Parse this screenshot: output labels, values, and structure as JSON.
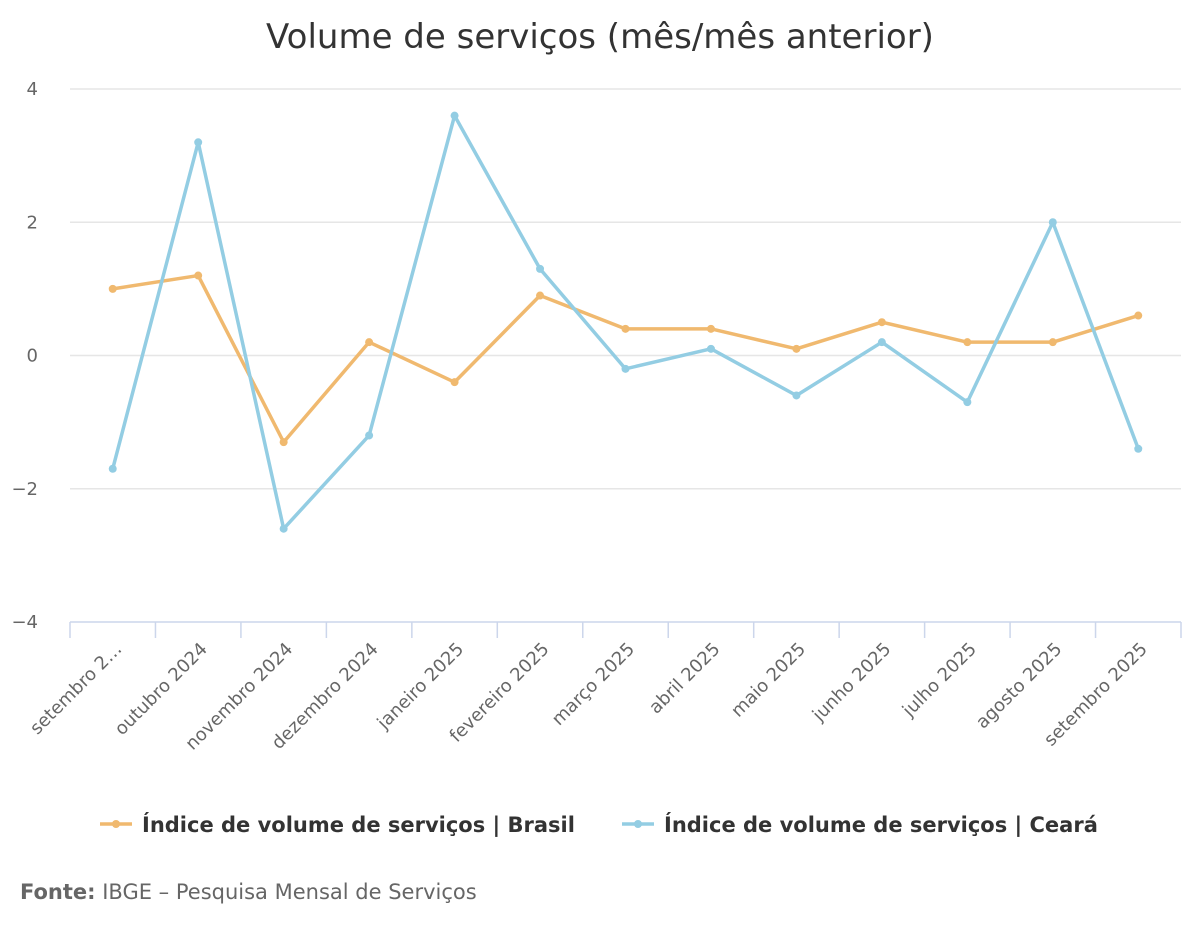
{
  "chart_data": {
    "type": "line",
    "title": "Volume de serviços (mês/mês anterior)",
    "xlabel": "",
    "ylabel": "",
    "ylim": [
      -4,
      4
    ],
    "yticks": [
      4,
      2,
      0,
      -2,
      -4
    ],
    "ytick_labels": [
      "4",
      "2",
      "0",
      "−2",
      "−4"
    ],
    "grid": true,
    "legend_position": "bottom",
    "categories": [
      "setembro 2…",
      "outubro 2024",
      "novembro 2024",
      "dezembro 2024",
      "janeiro 2025",
      "fevereiro 2025",
      "março 2025",
      "abril 2025",
      "maio 2025",
      "junho 2025",
      "julho 2025",
      "agosto 2025",
      "setembro 2025"
    ],
    "series": [
      {
        "name": "Índice de volume de serviços | Brasil",
        "color": "#f0b96f",
        "values": [
          1.0,
          1.2,
          -1.3,
          0.2,
          -0.4,
          0.9,
          0.4,
          0.4,
          0.1,
          0.5,
          0.2,
          0.2,
          0.6
        ]
      },
      {
        "name": "Índice de volume de serviços | Ceará",
        "color": "#93cde3",
        "values": [
          -1.7,
          3.2,
          -2.6,
          -1.2,
          3.6,
          1.3,
          -0.2,
          0.1,
          -0.6,
          0.2,
          -0.7,
          2.0,
          -1.4
        ]
      }
    ]
  },
  "source": {
    "label": "Fonte:",
    "text": " IBGE – Pesquisa Mensal de Serviços"
  }
}
